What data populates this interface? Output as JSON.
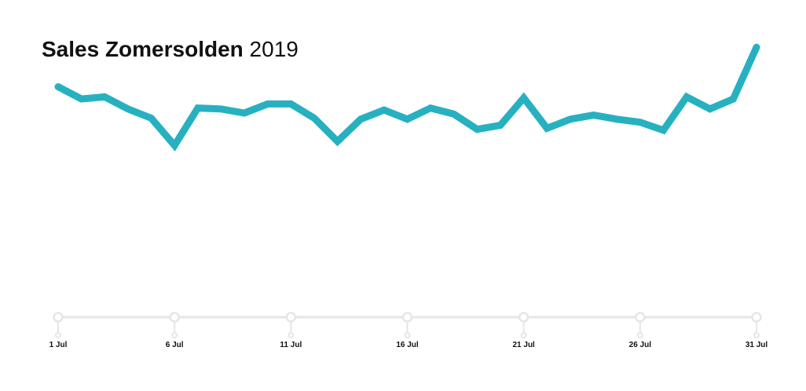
{
  "title": {
    "main": "Sales Zomersolden",
    "year": "2019"
  },
  "colors": {
    "line": "#27b1c0",
    "axis": "#e6e6e6",
    "text": "#111111"
  },
  "chart_data": {
    "type": "line",
    "title": "Sales Zomersolden 2019",
    "xlabel": "",
    "ylabel": "",
    "grid": false,
    "x": [
      1,
      2,
      3,
      4,
      5,
      6,
      7,
      8,
      9,
      10,
      11,
      12,
      13,
      14,
      15,
      16,
      17,
      18,
      19,
      20,
      21,
      22,
      23,
      24,
      25,
      26,
      27,
      28,
      29,
      30,
      31
    ],
    "xtick_values": [
      1,
      6,
      11,
      16,
      21,
      26,
      31
    ],
    "xtick_labels": [
      "1 Jul",
      "6 Jul",
      "11 Jul",
      "16 Jul",
      "21 Jul",
      "26 Jul",
      "31 Jul"
    ],
    "ylim": [
      0,
      100
    ],
    "series": [
      {
        "values": [
          78.5,
          72.5,
          73.5,
          67.5,
          63,
          49.5,
          68,
          67.5,
          65.5,
          70,
          70,
          63,
          51.5,
          62.5,
          67,
          62.5,
          68,
          65,
          57.5,
          59.5,
          73,
          58,
          62.5,
          64.5,
          62.5,
          61,
          57,
          73.5,
          67.5,
          72.5,
          98
        ]
      }
    ]
  }
}
